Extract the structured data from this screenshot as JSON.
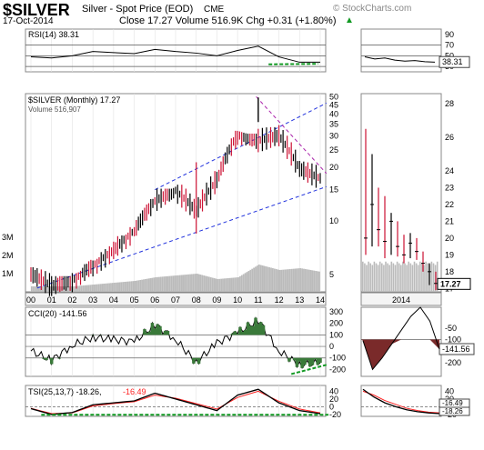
{
  "header": {
    "symbol": "$SILVER",
    "description": "Silver - Spot Price (EOD)",
    "exchange": "CME",
    "copyright": "© StockCharts.com",
    "date": "17-Oct-2014",
    "quote": "Close 17.27  Volume 516.9K  Chg +0.31 (+1.80%)",
    "up_arrow": "▲"
  },
  "colors": {
    "price_bar": "#cc1133",
    "trend_blue": "#2233dd",
    "trend_purple": "#aa22aa",
    "osc_fill": "#3a7a3a",
    "osc_fill_neg": "#7a2a2a",
    "green_dash": "#119922",
    "volume": "#bbbbbb",
    "signal": "#ff2222"
  },
  "chart_data": [
    {
      "type": "line",
      "panel": "RSI",
      "label": "RSI(14) 38.31",
      "yticks": [
        90,
        70,
        50,
        30
      ],
      "ylim": [
        20,
        100
      ],
      "x": [
        "00",
        "01",
        "02",
        "03",
        "04",
        "05",
        "06",
        "07",
        "08",
        "09",
        "10",
        "11",
        "12",
        "13",
        "14"
      ],
      "values": [
        48,
        46,
        50,
        58,
        56,
        54,
        62,
        58,
        55,
        50,
        60,
        68,
        48,
        38,
        38
      ],
      "guide_lines": [
        70,
        50,
        30
      ]
    },
    {
      "type": "bar",
      "panel": "Price",
      "label": "$SILVER (Monthly) 17.27",
      "volume_label": "Volume 516,907",
      "scale": "log",
      "yticks": [
        50,
        45,
        40,
        35,
        30,
        25,
        20,
        15,
        10,
        5
      ],
      "ylim": [
        4,
        52
      ],
      "volume_ticks": [
        "3M",
        "2M",
        "1M"
      ],
      "x": [
        "00",
        "01",
        "02",
        "03",
        "04",
        "05",
        "06",
        "07",
        "08",
        "09",
        "10",
        "11",
        "12",
        "13",
        "14"
      ],
      "close": [
        5.0,
        4.3,
        4.6,
        5.6,
        6.8,
        8.8,
        12.9,
        14.8,
        11.3,
        16.9,
        30.6,
        28.2,
        30.0,
        19.5,
        17.3
      ],
      "high": [
        5.5,
        4.9,
        5.1,
        6.0,
        8.3,
        9.2,
        15.2,
        16.0,
        21.4,
        19.4,
        31.0,
        49.5,
        37.5,
        32.0,
        22.0
      ],
      "low": [
        4.6,
        4.0,
        4.2,
        4.3,
        5.5,
        6.5,
        8.9,
        11.5,
        8.5,
        10.5,
        14.6,
        26.0,
        26.2,
        18.2,
        16.5
      ],
      "volume_millions": [
        0.3,
        0.3,
        0.3,
        0.4,
        0.5,
        0.6,
        0.8,
        0.9,
        1.0,
        0.7,
        0.8,
        1.5,
        1.2,
        1.3,
        1.1
      ],
      "last_price_tag": "17.27"
    },
    {
      "type": "bar",
      "panel": "Price inset (daily, 2014)",
      "yticks": [
        28,
        26,
        24,
        23,
        22,
        21,
        20,
        19,
        18,
        17
      ],
      "ylim": [
        16.8,
        28.6
      ],
      "xlabel": "2014",
      "close": [
        20.0,
        22.0,
        20.5,
        19.8,
        21.0,
        19.5,
        19.0,
        19.7,
        19.2,
        18.5,
        18.0,
        17.3
      ],
      "high": [
        26.5,
        25.0,
        23.0,
        22.5,
        21.5,
        21.0,
        20.2,
        20.3,
        20.0,
        19.2,
        18.5,
        18.0
      ],
      "low": [
        19.0,
        19.5,
        19.5,
        18.8,
        19.0,
        18.9,
        18.5,
        18.8,
        18.7,
        18.0,
        17.2,
        16.9
      ]
    },
    {
      "type": "line",
      "panel": "CCI",
      "label": "CCI(20) -141.56",
      "yticks": [
        300,
        200,
        100,
        0,
        -100,
        -200
      ],
      "ylim": [
        -260,
        340
      ],
      "x": [
        "00",
        "01",
        "02",
        "03",
        "04",
        "05",
        "06",
        "07",
        "08",
        "09",
        "10",
        "11",
        "12",
        "13",
        "14"
      ],
      "values": [
        -40,
        -120,
        10,
        80,
        60,
        40,
        190,
        60,
        -140,
        30,
        120,
        230,
        -40,
        -160,
        -142
      ],
      "guide_lines": [
        100,
        0,
        -100
      ],
      "inset_yticks": [
        -50,
        -100,
        -141.56,
        -200
      ],
      "inset_values": [
        -105,
        -230,
        -180,
        -120,
        -60,
        0,
        40,
        -20,
        -142
      ]
    },
    {
      "type": "line",
      "panel": "TSI",
      "label": "TSI(25,13,7) -18.26,",
      "signal_label": "-16.49",
      "yticks": [
        40,
        20,
        0,
        -20
      ],
      "ylim": [
        -25,
        55
      ],
      "x": [
        "00",
        "01",
        "02",
        "03",
        "04",
        "05",
        "06",
        "07",
        "08",
        "09",
        "10",
        "11",
        "12",
        "13",
        "14"
      ],
      "tsi": [
        -5,
        -20,
        -15,
        5,
        10,
        15,
        35,
        20,
        5,
        -10,
        30,
        45,
        10,
        -10,
        -18
      ],
      "signal": [
        -4,
        -18,
        -16,
        2,
        8,
        13,
        30,
        22,
        8,
        -6,
        24,
        40,
        14,
        -6,
        -16
      ],
      "guide_lines": [
        0
      ],
      "inset_tags": [
        "-16.49",
        "-18.26"
      ]
    }
  ]
}
